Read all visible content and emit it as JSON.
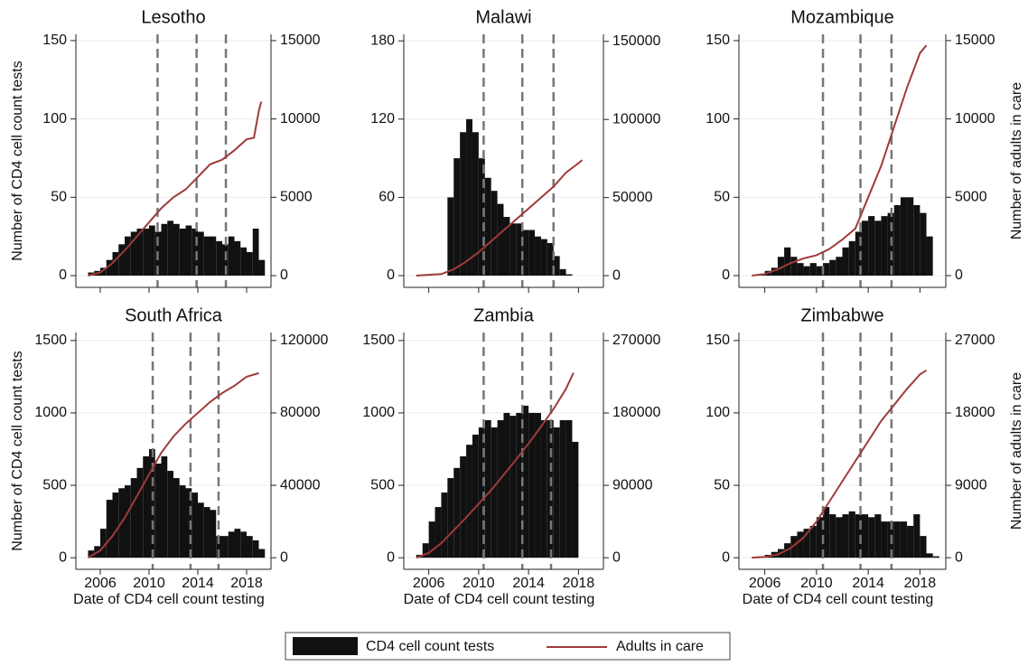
{
  "chart_data": [
    {
      "type": "combo",
      "title": "Lesotho",
      "ylabel": "Number of CD4 cell count tests",
      "xlim": [
        2004,
        2020
      ],
      "xticks": [
        2006,
        2010,
        2014,
        2018
      ],
      "xtick_labels": false,
      "ylim": [
        -7.5,
        154
      ],
      "yticks": [
        0,
        50,
        100,
        150
      ],
      "y2lim": [
        -750,
        15400
      ],
      "y2ticks": [
        0,
        5000,
        10000,
        15000
      ],
      "grid": true,
      "reference_lines": [
        2010.7,
        2013.9,
        2016.3
      ],
      "series": [
        {
          "type": "bar",
          "color": "#111111",
          "x": [
            2005,
            2005.5,
            2006,
            2006.5,
            2007,
            2007.5,
            2008,
            2008.5,
            2009,
            2009.5,
            2010,
            2010.5,
            2011,
            2011.5,
            2012,
            2012.5,
            2013,
            2013.5,
            2014,
            2014.5,
            2015,
            2015.5,
            2016,
            2016.5,
            2017,
            2017.5,
            2018,
            2018.5,
            2019
          ],
          "values": [
            2,
            3,
            5,
            10,
            15,
            20,
            25,
            28,
            30,
            30,
            32,
            28,
            33,
            35,
            33,
            30,
            32,
            30,
            28,
            25,
            25,
            22,
            20,
            25,
            22,
            18,
            15,
            30,
            10
          ]
        },
        {
          "type": "line",
          "axis": "y2",
          "color": "#a03a3a",
          "x": [
            2005,
            2006,
            2007,
            2008,
            2009,
            2010,
            2011,
            2012,
            2013,
            2014,
            2015,
            2016,
            2017,
            2018,
            2018.6,
            2019,
            2019.2
          ],
          "values": [
            0,
            200,
            800,
            1600,
            2500,
            3400,
            4300,
            5000,
            5500,
            6300,
            7100,
            7400,
            8000,
            8700,
            8800,
            10500,
            11100
          ]
        }
      ]
    },
    {
      "type": "combo",
      "title": "Malawi",
      "xlim": [
        2004,
        2020
      ],
      "xticks": [
        2006,
        2010,
        2014,
        2018
      ],
      "xtick_labels": false,
      "ylim": [
        -9,
        185
      ],
      "yticks": [
        0,
        60,
        120,
        180
      ],
      "y2lim": [
        -7500,
        154500
      ],
      "y2ticks": [
        0,
        50000,
        100000,
        150000
      ],
      "grid": true,
      "reference_lines": [
        2010.4,
        2013.5,
        2016.0
      ],
      "series": [
        {
          "type": "bar",
          "color": "#111111",
          "x": [
            2005,
            2005.5,
            2006,
            2006.5,
            2007,
            2007.5,
            2008,
            2008.5,
            2009,
            2009.5,
            2010,
            2010.5,
            2011,
            2011.5,
            2012,
            2012.5,
            2013,
            2013.5,
            2014,
            2014.5,
            2015,
            2015.5,
            2016,
            2016.5,
            2017,
            2017.5,
            2018
          ],
          "values": [
            0,
            0,
            0,
            0,
            0,
            60,
            90,
            110,
            120,
            110,
            90,
            75,
            65,
            55,
            45,
            40,
            40,
            35,
            35,
            30,
            28,
            25,
            15,
            5,
            1,
            0,
            0
          ]
        },
        {
          "type": "line",
          "axis": "y2",
          "color": "#a03a3a",
          "x": [
            2005,
            2007,
            2008,
            2009,
            2010,
            2011,
            2012,
            2013,
            2014,
            2015,
            2016,
            2017,
            2018,
            2018.3
          ],
          "values": [
            0,
            1000,
            4000,
            9000,
            15000,
            22000,
            29000,
            36000,
            43000,
            50000,
            57000,
            66000,
            72000,
            74000
          ]
        }
      ]
    },
    {
      "type": "combo",
      "title": "Mozambique",
      "y2label": "Number of adults in care",
      "xlim": [
        2004,
        2020
      ],
      "xticks": [
        2006,
        2010,
        2014,
        2018
      ],
      "xtick_labels": false,
      "ylim": [
        -7.5,
        154
      ],
      "yticks": [
        0,
        50,
        100,
        150
      ],
      "y2lim": [
        -750,
        15400
      ],
      "y2ticks": [
        0,
        5000,
        10000,
        15000
      ],
      "grid": true,
      "reference_lines": [
        2010.5,
        2013.4,
        2015.8
      ],
      "series": [
        {
          "type": "bar",
          "color": "#111111",
          "x": [
            2005,
            2005.5,
            2006,
            2006.5,
            2007,
            2007.5,
            2008,
            2008.5,
            2009,
            2009.5,
            2010,
            2010.5,
            2011,
            2011.5,
            2012,
            2012.5,
            2013,
            2013.5,
            2014,
            2014.5,
            2015,
            2015.5,
            2016,
            2016.5,
            2017,
            2017.5,
            2018,
            2018.5
          ],
          "values": [
            0,
            1,
            3,
            5,
            12,
            18,
            12,
            8,
            6,
            8,
            6,
            8,
            10,
            12,
            18,
            22,
            28,
            35,
            38,
            35,
            38,
            40,
            45,
            50,
            50,
            45,
            40,
            25
          ]
        },
        {
          "type": "line",
          "axis": "y2",
          "color": "#a03a3a",
          "x": [
            2005,
            2006,
            2007,
            2008,
            2009,
            2010,
            2011,
            2012,
            2013,
            2014,
            2015,
            2016,
            2017,
            2018,
            2018.5
          ],
          "values": [
            0,
            100,
            400,
            800,
            1100,
            1300,
            1700,
            2300,
            3000,
            5000,
            7000,
            9500,
            12000,
            14200,
            14700
          ]
        }
      ]
    },
    {
      "type": "combo",
      "title": "South Africa",
      "ylabel": "Number of CD4 cell count tests",
      "xlabel": "Date of CD4 cell count testing",
      "xlim": [
        2004,
        2020
      ],
      "xticks": [
        2006,
        2010,
        2014,
        2018
      ],
      "xtick_labels": true,
      "ylim": [
        -80,
        1555
      ],
      "yticks": [
        0,
        500,
        1000,
        1500
      ],
      "y2lim": [
        -6400,
        124400
      ],
      "y2ticks": [
        0,
        40000,
        80000,
        120000
      ],
      "grid": true,
      "reference_lines": [
        2010.3,
        2013.4,
        2015.7
      ],
      "series": [
        {
          "type": "bar",
          "color": "#111111",
          "x": [
            2005,
            2005.5,
            2006,
            2006.5,
            2007,
            2007.5,
            2008,
            2008.5,
            2009,
            2009.5,
            2010,
            2010.5,
            2011,
            2011.5,
            2012,
            2012.5,
            2013,
            2013.5,
            2014,
            2014.5,
            2015,
            2015.5,
            2016,
            2016.5,
            2017,
            2017.5,
            2018,
            2018.5,
            2019
          ],
          "values": [
            50,
            80,
            200,
            400,
            450,
            480,
            500,
            550,
            620,
            700,
            750,
            650,
            700,
            600,
            550,
            500,
            480,
            450,
            380,
            350,
            330,
            150,
            150,
            180,
            200,
            180,
            150,
            120,
            60
          ]
        },
        {
          "type": "line",
          "axis": "y2",
          "color": "#a03a3a",
          "x": [
            2005,
            2006,
            2007,
            2008,
            2009,
            2010,
            2011,
            2012,
            2013,
            2014,
            2015,
            2016,
            2017,
            2018,
            2019
          ],
          "values": [
            0,
            4000,
            12000,
            22000,
            34000,
            46000,
            58000,
            67000,
            74000,
            80000,
            86000,
            91000,
            95000,
            100000,
            102000
          ]
        }
      ]
    },
    {
      "type": "combo",
      "title": "Zambia",
      "xlabel": "Date of CD4 cell count testing",
      "xlim": [
        2004,
        2020
      ],
      "xticks": [
        2006,
        2010,
        2014,
        2018
      ],
      "xtick_labels": true,
      "ylim": [
        -80,
        1555
      ],
      "yticks": [
        0,
        500,
        1000,
        1500
      ],
      "y2lim": [
        -14400,
        280000
      ],
      "y2ticks": [
        0,
        90000,
        180000,
        270000
      ],
      "grid": true,
      "reference_lines": [
        2010.4,
        2013.5,
        2015.8
      ],
      "series": [
        {
          "type": "bar",
          "color": "#111111",
          "x": [
            2005,
            2005.5,
            2006,
            2006.5,
            2007,
            2007.5,
            2008,
            2008.5,
            2009,
            2009.5,
            2010,
            2010.5,
            2011,
            2011.5,
            2012,
            2012.5,
            2013,
            2013.5,
            2014,
            2014.5,
            2015,
            2015.5,
            2016,
            2016.5,
            2017,
            2017.5
          ],
          "values": [
            20,
            100,
            250,
            350,
            450,
            550,
            620,
            700,
            780,
            850,
            900,
            950,
            900,
            950,
            1000,
            980,
            1000,
            1050,
            1000,
            1000,
            950,
            950,
            900,
            950,
            950,
            800
          ]
        },
        {
          "type": "line",
          "axis": "y2",
          "color": "#a03a3a",
          "x": [
            2005,
            2006,
            2007,
            2008,
            2009,
            2010,
            2011,
            2012,
            2013,
            2014,
            2015,
            2016,
            2017,
            2017.6
          ],
          "values": [
            0,
            6000,
            18000,
            34000,
            50000,
            67000,
            84000,
            103000,
            122000,
            142000,
            163000,
            185000,
            210000,
            230000
          ]
        }
      ]
    },
    {
      "type": "combo",
      "title": "Zimbabwe",
      "y2label": "Number of adults in care",
      "xlabel": "Date of CD4 cell count testing",
      "xlim": [
        2004,
        2020
      ],
      "xticks": [
        2006,
        2010,
        2014,
        2018
      ],
      "xtick_labels": true,
      "ylim": [
        -8,
        155.5
      ],
      "yticks": [
        0,
        50,
        100,
        150
      ],
      "y2lim": [
        -1440,
        28000
      ],
      "y2ticks": [
        0,
        9000,
        18000,
        27000
      ],
      "grid": true,
      "reference_lines": [
        2010.5,
        2013.4,
        2015.8
      ],
      "series": [
        {
          "type": "bar",
          "color": "#111111",
          "x": [
            2005,
            2005.5,
            2006,
            2006.5,
            2007,
            2007.5,
            2008,
            2008.5,
            2009,
            2009.5,
            2010,
            2010.5,
            2011,
            2011.5,
            2012,
            2012.5,
            2013,
            2013.5,
            2014,
            2014.5,
            2015,
            2015.5,
            2016,
            2016.5,
            2017,
            2017.5,
            2018,
            2018.5,
            2019
          ],
          "values": [
            0,
            1,
            2,
            4,
            6,
            10,
            15,
            18,
            20,
            22,
            28,
            35,
            30,
            28,
            30,
            32,
            30,
            30,
            28,
            30,
            25,
            25,
            25,
            25,
            22,
            30,
            15,
            3,
            1
          ]
        },
        {
          "type": "line",
          "axis": "y2",
          "color": "#a03a3a",
          "x": [
            2005,
            2006,
            2007,
            2008,
            2009,
            2010,
            2011,
            2012,
            2013,
            2014,
            2015,
            2016,
            2017,
            2018,
            2018.5
          ],
          "values": [
            0,
            100,
            400,
            1200,
            2500,
            4500,
            7000,
            9500,
            12000,
            14500,
            17000,
            19000,
            21000,
            22800,
            23300
          ]
        }
      ]
    }
  ],
  "legend": {
    "entries": [
      {
        "label": "CD4 cell count tests",
        "color": "#111111"
      },
      {
        "label": "Adults in care",
        "color": "#a03a3a"
      }
    ]
  }
}
